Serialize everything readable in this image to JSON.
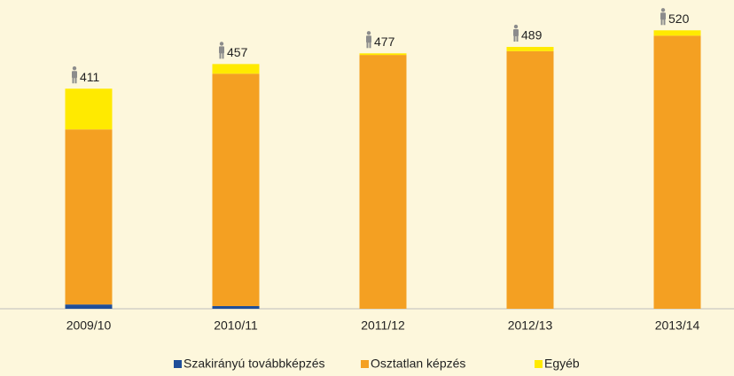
{
  "chart_data": {
    "type": "stacked_bar",
    "categories": [
      "2009/10",
      "2010/11",
      "2011/12",
      "2012/13",
      "2013/14"
    ],
    "series": [
      {
        "name": "Szakirányú továbbképzés",
        "color": "#1f4e99",
        "values": [
          8,
          5,
          0,
          0,
          0
        ]
      },
      {
        "name": "Osztatlan képzés",
        "color": "#f4a022",
        "values": [
          327,
          434,
          474,
          481,
          510
        ]
      },
      {
        "name": "Egyéb",
        "color": "#ffea00",
        "values": [
          76,
          18,
          3,
          8,
          10
        ]
      }
    ],
    "totals": [
      411,
      457,
      477,
      489,
      520
    ],
    "ylim": [
      0,
      570
    ],
    "legend": "bottom"
  }
}
